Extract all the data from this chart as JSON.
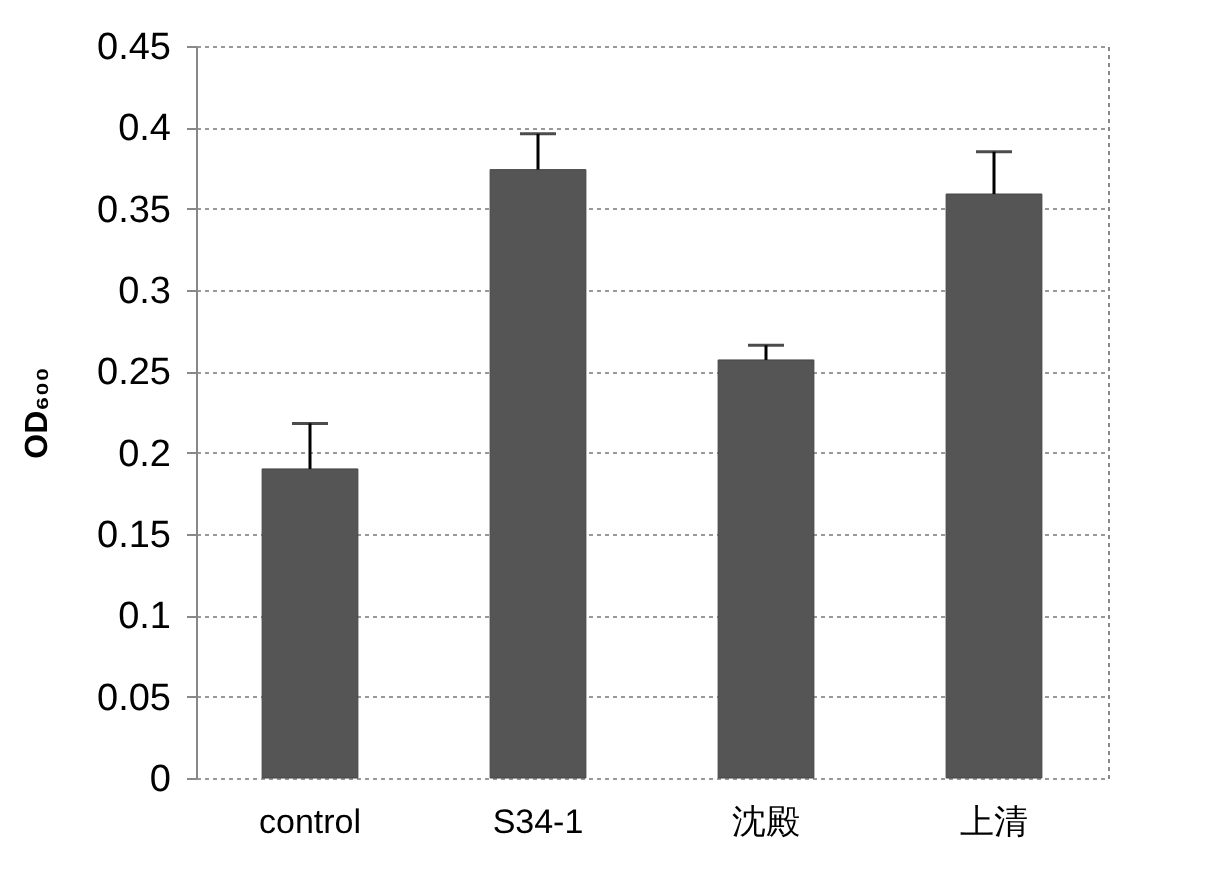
{
  "chart_data": {
    "type": "bar",
    "ylabel": "OD₆₀₀",
    "categories": [
      "control",
      "S34-1",
      "沈殿",
      "上清"
    ],
    "values": [
      0.19,
      0.374,
      0.257,
      0.359
    ],
    "errors": [
      0.028,
      0.022,
      0.009,
      0.026
    ],
    "color": "#555555",
    "ylim": [
      0,
      0.45
    ],
    "yticks": [
      0,
      0.05,
      0.1,
      0.15,
      0.2,
      0.25,
      0.3,
      0.35,
      0.4,
      0.45
    ],
    "grid": "y"
  }
}
